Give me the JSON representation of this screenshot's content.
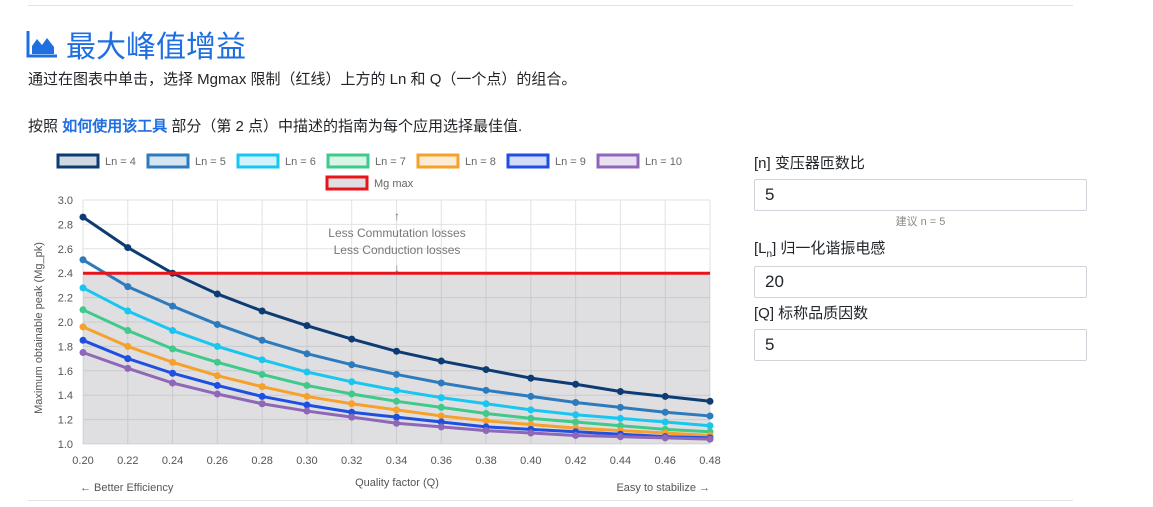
{
  "header": {
    "title": "最大峰值增益",
    "icon": "area-chart-icon",
    "instruction": "通过在图表中单击，选择 Mgmax 限制（红线）上方的 Ln 和 Q（一个点）的组合。",
    "guide_prefix": "按照",
    "guide_link": "如何使用该工具",
    "guide_suffix": "部分（第 2 点）中描述的指南为每个应用选择最佳值."
  },
  "fields": {
    "n": {
      "label": "[n] 变压器匝数比",
      "value": "5",
      "hint": "建议 n = 5"
    },
    "ln": {
      "label_pre": "[L",
      "label_sub": "n",
      "label_post": "] 归一化谐振电感",
      "value": "20"
    },
    "q": {
      "label": "[Q] 标称品质因数",
      "value": "5"
    }
  },
  "chart_data": {
    "type": "line",
    "x": [
      0.2,
      0.22,
      0.24,
      0.26,
      0.28,
      0.3,
      0.32,
      0.34,
      0.36,
      0.38,
      0.4,
      0.42,
      0.44,
      0.46,
      0.48
    ],
    "x_ticks": [
      "0.20",
      "0.22",
      "0.24",
      "0.26",
      "0.28",
      "0.30",
      "0.32",
      "0.34",
      "0.36",
      "0.38",
      "0.40",
      "0.42",
      "0.44",
      "0.46",
      "0.48"
    ],
    "y_ticks": [
      "1.0",
      "1.2",
      "1.4",
      "1.6",
      "1.8",
      "2.0",
      "2.2",
      "2.4",
      "2.6",
      "2.8",
      "3.0"
    ],
    "xlim": [
      0.2,
      0.48
    ],
    "ylim": [
      1.0,
      3.0
    ],
    "xlabel": "Quality factor (Q)",
    "ylabel": "Maximum obtainable peak (Mg_pk)",
    "x_left_note": "← Better Efficiency",
    "x_right_note": "Easy to stabilize →",
    "annotation_up": "↑",
    "annotation_line1": "Less Commutation losses",
    "annotation_line2": "Less Conduction losses",
    "annotation_down": "↓",
    "grid": true,
    "legend_position": "top",
    "mg_max": {
      "name": "Mg max",
      "value": 2.4,
      "color": "#e8131b"
    },
    "series": [
      {
        "name": "Ln = 4",
        "color": "#0d3b73",
        "values": [
          2.86,
          2.61,
          2.4,
          2.23,
          2.09,
          1.97,
          1.86,
          1.76,
          1.68,
          1.61,
          1.54,
          1.49,
          1.43,
          1.39,
          1.35
        ]
      },
      {
        "name": "Ln = 5",
        "color": "#2d7bbd",
        "values": [
          2.51,
          2.29,
          2.13,
          1.98,
          1.85,
          1.74,
          1.65,
          1.57,
          1.5,
          1.44,
          1.39,
          1.34,
          1.3,
          1.26,
          1.23
        ]
      },
      {
        "name": "Ln = 6",
        "color": "#19c6f0",
        "values": [
          2.28,
          2.09,
          1.93,
          1.8,
          1.69,
          1.59,
          1.51,
          1.44,
          1.38,
          1.33,
          1.28,
          1.24,
          1.21,
          1.18,
          1.15
        ]
      },
      {
        "name": "Ln = 7",
        "color": "#3fc98a",
        "values": [
          2.1,
          1.93,
          1.78,
          1.67,
          1.57,
          1.48,
          1.41,
          1.35,
          1.3,
          1.25,
          1.21,
          1.18,
          1.15,
          1.12,
          1.1
        ]
      },
      {
        "name": "Ln = 8",
        "color": "#f5a12b",
        "values": [
          1.96,
          1.8,
          1.67,
          1.56,
          1.47,
          1.39,
          1.33,
          1.28,
          1.23,
          1.19,
          1.16,
          1.13,
          1.11,
          1.09,
          1.07
        ]
      },
      {
        "name": "Ln = 9",
        "color": "#1f4fe0",
        "values": [
          1.85,
          1.7,
          1.58,
          1.48,
          1.39,
          1.32,
          1.26,
          1.22,
          1.18,
          1.14,
          1.12,
          1.1,
          1.08,
          1.06,
          1.05
        ]
      },
      {
        "name": "Ln = 10",
        "color": "#8f67b8",
        "values": [
          1.75,
          1.62,
          1.5,
          1.41,
          1.33,
          1.27,
          1.22,
          1.17,
          1.14,
          1.11,
          1.09,
          1.07,
          1.06,
          1.05,
          1.04
        ]
      }
    ]
  }
}
